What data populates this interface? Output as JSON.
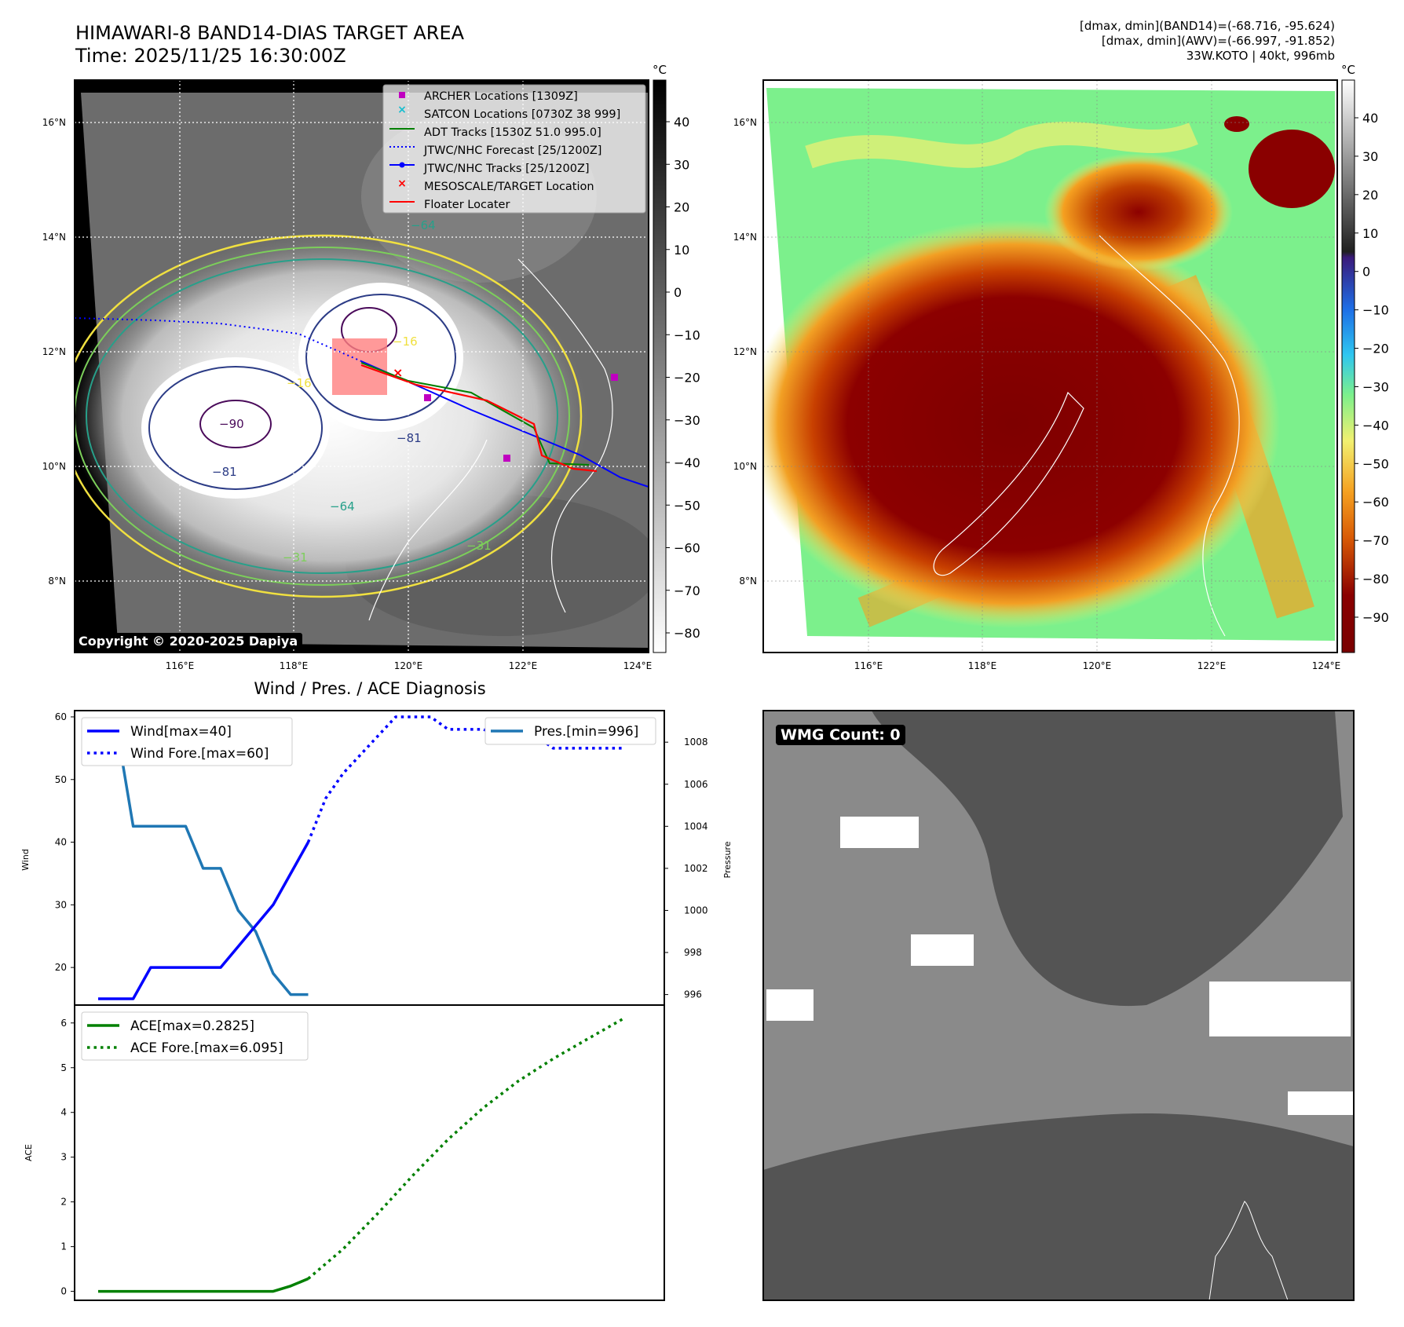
{
  "header": {
    "title_line1": "HIMAWARI-8 BAND14-DIAS TARGET AREA",
    "title_line2": "Time: 2025/11/25 16:30:00Z",
    "info_line1": "[dmax, dmin](BAND14)=(-68.716, -95.624)",
    "info_line2": "[dmax, dmin](AWV)=(-66.997, -91.852)",
    "info_line3": "33W.KOTO | 40kt, 996mb"
  },
  "map": {
    "lat_labels": [
      "16°N",
      "14°N",
      "12°N",
      "10°N",
      "8°N"
    ],
    "lon_labels": [
      "116°E",
      "118°E",
      "120°E",
      "122°E",
      "124°E"
    ],
    "unit": "°C",
    "colorbar_left_ticks": [
      "40",
      "30",
      "20",
      "10",
      "0",
      "−10",
      "−20",
      "−30",
      "−40",
      "−50",
      "−60",
      "−70",
      "−80"
    ],
    "colorbar_right_ticks": [
      "40",
      "30",
      "20",
      "10",
      "0",
      "−10",
      "−20",
      "−30",
      "−40",
      "−50",
      "−60",
      "−70",
      "−80",
      "−90"
    ],
    "contour_labels": [
      "−90",
      "−81",
      "−81",
      "−64",
      "−64",
      "−31",
      "−31",
      "−16",
      "−16"
    ],
    "copyright": "Copyright © 2020-2025 Dapiya",
    "legend": [
      {
        "label": "ARCHER Locations [1309Z]",
        "color": "#c000c0",
        "marker": "square"
      },
      {
        "label": "SATCON Locations [0730Z 38 999]",
        "color": "#17becf",
        "marker": "x"
      },
      {
        "label": "ADT Tracks [1530Z 51.0 995.0]",
        "color": "#008000",
        "marker": "line"
      },
      {
        "label": "JTWC/NHC Forecast [25/1200Z]",
        "color": "#0000ff",
        "marker": "dotted"
      },
      {
        "label": "JTWC/NHC Tracks [25/1200Z]",
        "color": "#0000ff",
        "marker": "line-dot"
      },
      {
        "label": "MESOSCALE/TARGET Location",
        "color": "#ff0000",
        "marker": "x"
      },
      {
        "label": "Floater Locater",
        "color": "#ff0000",
        "marker": "line"
      }
    ]
  },
  "diagnosis": {
    "title": "Wind / Pres. / ACE Diagnosis",
    "wind_ylabel": "Wind",
    "pres_ylabel": "Pressure",
    "ace_ylabel": "ACE",
    "wind_legend": "Wind[max=40]",
    "wind_fore_legend": "Wind Fore.[max=60]",
    "pres_legend": "Pres.[min=996]",
    "ace_legend": "ACE[max=0.2825]",
    "ace_fore_legend": "ACE Fore.[max=6.095]",
    "wmg": "WMG Count: 0"
  },
  "chart_data": [
    {
      "type": "line",
      "title": "Wind / Pres. / ACE Diagnosis",
      "ylabel": "Wind",
      "ylim": [
        14,
        61
      ],
      "yticks": [
        20,
        30,
        40,
        50,
        60
      ],
      "x_range": [
        0,
        31
      ],
      "series": [
        {
          "name": "Wind[max=40]",
          "color": "#0000ff",
          "style": "solid",
          "x": [
            0,
            2,
            3,
            6,
            7,
            10,
            12
          ],
          "values": [
            15,
            15,
            20,
            20,
            20,
            30,
            40
          ]
        },
        {
          "name": "Wind Fore.[max=60]",
          "color": "#0000ff",
          "style": "dotted",
          "x": [
            12,
            13,
            14,
            15,
            16,
            17,
            18,
            19,
            20,
            21,
            22,
            23,
            24,
            25,
            26,
            27,
            28,
            29,
            30
          ],
          "values": [
            40,
            47,
            51,
            54,
            57,
            60,
            60,
            60,
            58,
            58,
            58,
            57,
            57,
            57,
            55,
            55,
            55,
            55,
            55
          ]
        }
      ]
    },
    {
      "type": "line",
      "ylabel": "Pressure",
      "ylim": [
        995.5,
        1009.5
      ],
      "yticks": [
        996,
        998,
        1000,
        1002,
        1004,
        1006,
        1008
      ],
      "series": [
        {
          "name": "Pres.[min=996]",
          "color": "#1f77b4",
          "style": "solid",
          "x": [
            0,
            1,
            2,
            3,
            4,
            5,
            6,
            7,
            8,
            9,
            10,
            11,
            12
          ],
          "values": [
            1009,
            1009,
            1004,
            1004,
            1004,
            1004,
            1002,
            1002,
            1000,
            999,
            997,
            996,
            996
          ]
        }
      ]
    },
    {
      "type": "line",
      "ylabel": "ACE",
      "ylim": [
        -0.2,
        6.4
      ],
      "yticks": [
        0,
        1,
        2,
        3,
        4,
        5,
        6
      ],
      "series": [
        {
          "name": "ACE[max=0.2825]",
          "color": "#008000",
          "style": "solid",
          "x": [
            0,
            2,
            4,
            6,
            8,
            10,
            11,
            12
          ],
          "values": [
            0,
            0,
            0,
            0,
            0,
            0,
            0.12,
            0.2825
          ]
        },
        {
          "name": "ACE Fore.[max=6.095]",
          "color": "#008000",
          "style": "dotted",
          "x": [
            12,
            14,
            16,
            18,
            20,
            22,
            24,
            26,
            28,
            30
          ],
          "values": [
            0.2825,
            0.95,
            1.75,
            2.6,
            3.4,
            4.1,
            4.7,
            5.2,
            5.65,
            6.095
          ]
        }
      ]
    }
  ]
}
